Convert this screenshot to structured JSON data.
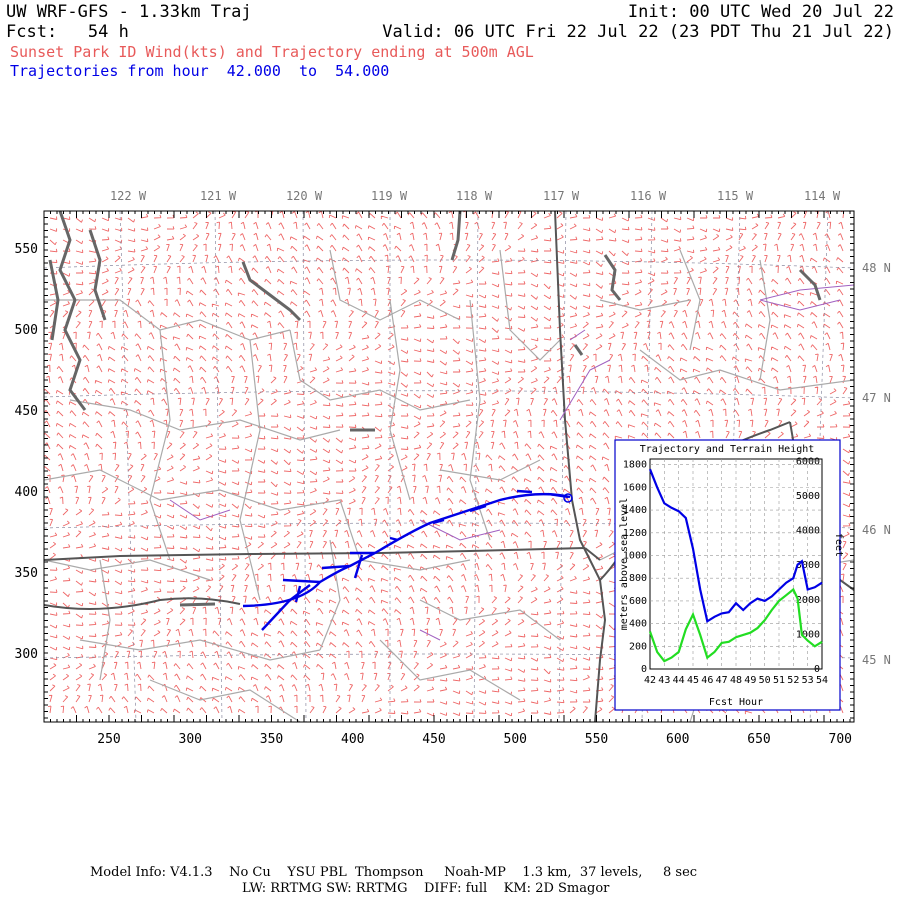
{
  "header": {
    "title": "UW WRF-GFS - 1.33km Traj",
    "init": "Init: 00 UTC Wed 20 Jul 22",
    "fcst_label": "Fcst:",
    "fcst_value": "54 h",
    "valid": "Valid: 06 UTC Fri 22 Jul 22 (23 PDT Thu 21 Jul 22)",
    "subtitle": "Sunset Park ID Wind(kts) and Trajectory ending at 500m AGL",
    "traj_prefix": "Trajectories from hour",
    "traj_from": "42.000",
    "traj_to_word": "to",
    "traj_to": "54.000"
  },
  "colors": {
    "title": "#000000",
    "subtitle": "#e85a5a",
    "trajectory": "#0000e6",
    "wind_barb": "#ee6666",
    "state_border": "#555555",
    "county": "#aaaaaa",
    "terrain": "#22dd22",
    "river": "#a060c0"
  },
  "map": {
    "lon_labels": [
      "122 W",
      "121 W",
      "120 W",
      "119 W",
      "118 W",
      "117 W",
      "116 W",
      "115 W",
      "114 W"
    ],
    "lat_labels": [
      "48 N",
      "47 N",
      "46 N",
      "45 N"
    ],
    "x_ticks": [
      "250",
      "300",
      "350",
      "400",
      "450",
      "500",
      "550",
      "600",
      "650",
      "700"
    ],
    "y_ticks": [
      "550",
      "500",
      "450",
      "400",
      "350",
      "300"
    ]
  },
  "inset": {
    "title": "Trajectory and Terrain Height",
    "xlabel": "Fcst Hour",
    "ylabel_left": "meters above sea level",
    "ylabel_right": "feet",
    "left_ticks": [
      "1800",
      "1600",
      "1400",
      "1200",
      "1000",
      "800",
      "600",
      "400",
      "200",
      "0"
    ],
    "right_ticks": [
      "6000",
      "5000",
      "4000",
      "3000",
      "2000",
      "1000",
      "0"
    ],
    "x_ticks": [
      "42",
      "43",
      "44",
      "45",
      "46",
      "47",
      "48",
      "49",
      "50",
      "51",
      "52",
      "53",
      "54"
    ]
  },
  "chart_data": {
    "type": "line",
    "x": [
      42,
      42.5,
      43,
      43.5,
      44,
      44.5,
      45,
      45.5,
      46,
      46.5,
      47,
      47.5,
      48,
      48.5,
      49,
      49.5,
      50,
      50.5,
      51,
      51.5,
      52,
      52.3,
      52.6,
      53,
      53.5,
      54
    ],
    "series": [
      {
        "values": [
          1760,
          1600,
          1460,
          1420,
          1390,
          1330,
          1060,
          700,
          420,
          460,
          490,
          500,
          580,
          520,
          580,
          620,
          600,
          640,
          700,
          760,
          800,
          920,
          950,
          700,
          720,
          760
        ]
      },
      {
        "values": [
          330,
          150,
          70,
          100,
          150,
          350,
          480,
          300,
          100,
          150,
          230,
          240,
          280,
          300,
          320,
          360,
          430,
          520,
          600,
          650,
          700,
          620,
          300,
          250,
          200,
          240
        ]
      }
    ],
    "xlim": [
      42,
      54
    ],
    "ylim": [
      0,
      1850
    ]
  },
  "footer": {
    "line1": "Model Info: V4.1.3    No Cu    YSU PBL  Thompson     Noah-MP    1.3 km,  37 levels,     8 sec",
    "line2": "LW: RRTMG SW: RRTMG    DIFF: full    KM: 2D Smagor"
  }
}
